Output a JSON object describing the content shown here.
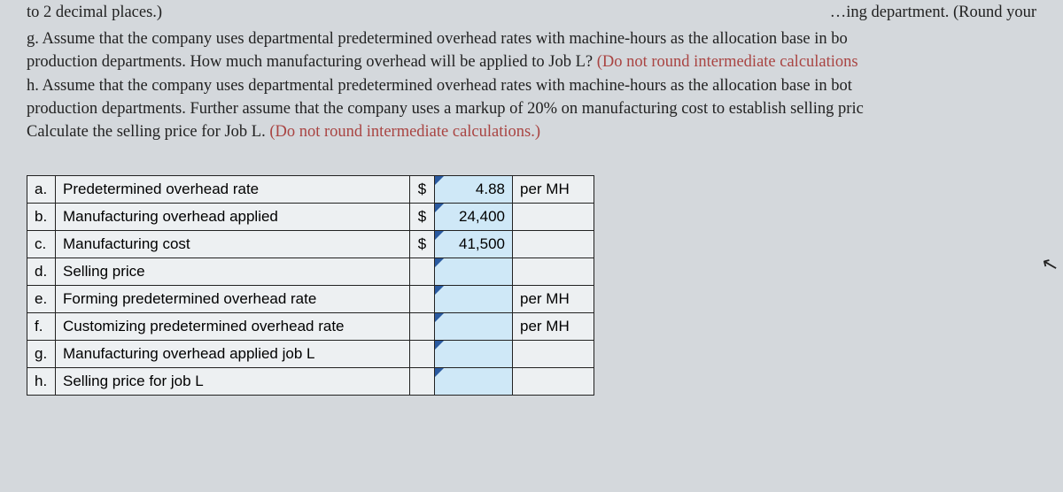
{
  "top_fragments": {
    "left": "to 2 decimal places.)",
    "right": "…ing department. (Round your"
  },
  "questions": {
    "g_line1": "g. Assume that the company uses departmental predetermined overhead rates with machine-hours as the allocation base in bo",
    "g_line2_a": "production departments. How much manufacturing overhead will be applied to Job L? ",
    "g_line2_hint": "(Do not round intermediate calculations",
    "h_line1": "h. Assume that the company uses departmental predetermined overhead rates with machine-hours as the allocation base in bot",
    "h_line2": "production departments. Further assume that the company uses a markup of 20% on manufacturing cost to establish selling pric",
    "h_line3_a": "Calculate the selling price for Job L. ",
    "h_line3_hint": "(Do not round intermediate calculations.)"
  },
  "table": {
    "rows": [
      {
        "letter": "a.",
        "label": "Predetermined overhead rate",
        "currency": "$",
        "value": "4.88",
        "unit": "per MH"
      },
      {
        "letter": "b.",
        "label": "Manufacturing overhead applied",
        "currency": "$",
        "value": "24,400",
        "unit": ""
      },
      {
        "letter": "c.",
        "label": "Manufacturing cost",
        "currency": "$",
        "value": "41,500",
        "unit": ""
      },
      {
        "letter": "d.",
        "label": "Selling price",
        "currency": "",
        "value": "",
        "unit": ""
      },
      {
        "letter": "e.",
        "label": "Forming predetermined overhead rate",
        "currency": "",
        "value": "",
        "unit": "per MH"
      },
      {
        "letter": "f.",
        "label": "Customizing predetermined overhead rate",
        "currency": "",
        "value": "",
        "unit": "per MH"
      },
      {
        "letter": "g.",
        "label": "Manufacturing overhead applied job L",
        "currency": "",
        "value": "",
        "unit": ""
      },
      {
        "letter": "h.",
        "label": "Selling price for job L",
        "currency": "",
        "value": "",
        "unit": ""
      }
    ]
  },
  "style": {
    "page_bg": "#d4d8dc",
    "table_bg": "#edf0f2",
    "input_bg": "#cfe8f7",
    "border": "#222222",
    "hint_color": "#a94442",
    "tri_color": "#2a5aa0",
    "body_font_size_pt": 14,
    "table_font_size_pt": 13
  }
}
